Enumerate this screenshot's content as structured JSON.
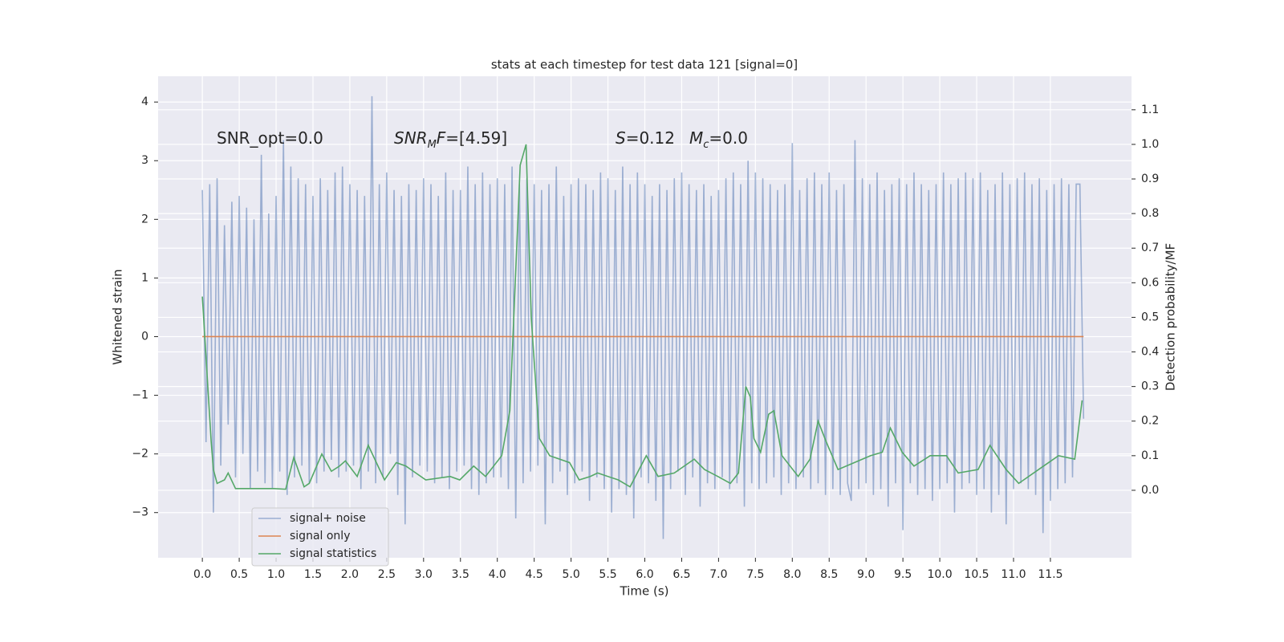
{
  "chart_data": {
    "type": "line",
    "title": "stats at each timestep for test data 121 [signal=0]",
    "xlabel": "Time (s)",
    "ylabel": "Whitened strain",
    "y2label": "Detection probability/MF",
    "annotations": [
      [
        {
          "text": "SNR_opt=0.0"
        }
      ],
      [
        {
          "text": "SNR",
          "italic": true
        },
        {
          "text": "M",
          "italic": true,
          "sub": true
        },
        {
          "text": "F",
          "italic": true
        },
        {
          "text": "=[4.59]"
        }
      ],
      [
        {
          "text": "S",
          "italic": true
        },
        {
          "text": "=0.12"
        }
      ],
      [
        {
          "text": "M",
          "italic": true
        },
        {
          "text": "c",
          "italic": true,
          "sub": true
        },
        {
          "text": "=0.0"
        }
      ]
    ],
    "xlim": [
      -0.6,
      12.6
    ],
    "ylim": [
      -3.77,
      4.44
    ],
    "y2lim": [
      -0.195,
      1.197
    ],
    "xticks": [
      {
        "value": 0,
        "label": "0.0"
      },
      0.5,
      {
        "value": 1,
        "label": "1.0"
      },
      1.5,
      {
        "value": 2,
        "label": "2.0"
      },
      2.5,
      {
        "value": 3,
        "label": "3.0"
      },
      3.5,
      {
        "value": 4,
        "label": "4.0"
      },
      4.5,
      {
        "value": 5,
        "label": "5.0"
      },
      5.5,
      {
        "value": 6,
        "label": "6.0"
      },
      6.5,
      {
        "value": 7,
        "label": "7.0"
      },
      7.5,
      {
        "value": 8,
        "label": "8.0"
      },
      8.5,
      {
        "value": 9,
        "label": "9.0"
      },
      9.5,
      {
        "value": 10,
        "label": "10.0"
      },
      10.5,
      {
        "value": 11,
        "label": "11.0"
      },
      11.5
    ],
    "yticks": [
      {
        "value": -3,
        "label": "−3"
      },
      {
        "value": -2,
        "label": "−2"
      },
      {
        "value": -1,
        "label": "−1"
      },
      0,
      1,
      2,
      3,
      4
    ],
    "y2ticks": [
      {
        "value": 0,
        "label": "0.0"
      },
      0.1,
      0.2,
      0.3,
      0.4,
      0.5,
      0.6,
      0.7,
      0.8,
      0.9,
      {
        "value": 1,
        "label": "1.0"
      },
      1.1
    ],
    "grid": true,
    "legend": "lower left",
    "series": [
      {
        "name": "signal+ noise",
        "color": "#4c72b0",
        "opacity": 0.5,
        "x": [
          0,
          0.05,
          0.1,
          0.15,
          0.2,
          0.25,
          0.3,
          0.35,
          0.4,
          0.45,
          0.5,
          0.55,
          0.6,
          0.65,
          0.7,
          0.75,
          0.8,
          0.85,
          0.9,
          0.95,
          1,
          1.05,
          1.1,
          1.15,
          1.2,
          1.25,
          1.3,
          1.35,
          1.4,
          1.45,
          1.5,
          1.55,
          1.6,
          1.65,
          1.7,
          1.75,
          1.8,
          1.85,
          1.9,
          1.95,
          2,
          2.05,
          2.1,
          2.15,
          2.2,
          2.25,
          2.3,
          2.35,
          2.4,
          2.45,
          2.5,
          2.55,
          2.6,
          2.65,
          2.7,
          2.75,
          2.8,
          2.85,
          2.9,
          2.95,
          3,
          3.05,
          3.1,
          3.15,
          3.2,
          3.25,
          3.3,
          3.35,
          3.4,
          3.45,
          3.5,
          3.55,
          3.6,
          3.65,
          3.7,
          3.75,
          3.8,
          3.85,
          3.9,
          3.95,
          4,
          4.05,
          4.1,
          4.15,
          4.2,
          4.25,
          4.3,
          4.35,
          4.4,
          4.45,
          4.5,
          4.55,
          4.6,
          4.65,
          4.7,
          4.75,
          4.8,
          4.85,
          4.9,
          4.95,
          5,
          5.05,
          5.1,
          5.15,
          5.2,
          5.25,
          5.3,
          5.35,
          5.4,
          5.45,
          5.5,
          5.55,
          5.6,
          5.65,
          5.7,
          5.75,
          5.8,
          5.85,
          5.9,
          5.95,
          6,
          6.05,
          6.1,
          6.15,
          6.2,
          6.25,
          6.3,
          6.35,
          6.4,
          6.45,
          6.5,
          6.55,
          6.6,
          6.65,
          6.7,
          6.75,
          6.8,
          6.85,
          6.9,
          6.95,
          7,
          7.05,
          7.1,
          7.15,
          7.2,
          7.25,
          7.3,
          7.35,
          7.4,
          7.45,
          7.5,
          7.55,
          7.6,
          7.65,
          7.7,
          7.75,
          7.8,
          7.85,
          7.9,
          7.95,
          8,
          8.05,
          8.1,
          8.15,
          8.2,
          8.25,
          8.3,
          8.35,
          8.4,
          8.45,
          8.5,
          8.55,
          8.6,
          8.65,
          8.7,
          8.75,
          8.8,
          8.85,
          8.9,
          8.95,
          9,
          9.05,
          9.1,
          9.15,
          9.2,
          9.25,
          9.3,
          9.35,
          9.4,
          9.45,
          9.5,
          9.55,
          9.6,
          9.65,
          9.7,
          9.75,
          9.8,
          9.85,
          9.9,
          9.95,
          10,
          10.05,
          10.1,
          10.15,
          10.2,
          10.25,
          10.3,
          10.35,
          10.4,
          10.45,
          10.5,
          10.55,
          10.6,
          10.65,
          10.7,
          10.75,
          10.8,
          10.85,
          10.9,
          10.95,
          11,
          11.05,
          11.1,
          11.15,
          11.2,
          11.25,
          11.3,
          11.35,
          11.4,
          11.45,
          11.5,
          11.55,
          11.6,
          11.65,
          11.7,
          11.75,
          11.8,
          11.85,
          11.9,
          11.95
        ],
        "values": [
          2.5,
          -1.8,
          2.6,
          -3.0,
          2.7,
          -2.2,
          1.9,
          -1.5,
          2.3,
          -2.4,
          2.4,
          -2.0,
          2.2,
          -2.6,
          2.0,
          -2.3,
          3.1,
          -2.5,
          2.1,
          -2.6,
          2.4,
          -2.3,
          3.35,
          -2.7,
          2.9,
          -2.4,
          2.7,
          -2.2,
          2.6,
          -2.5,
          2.4,
          -2.5,
          2.7,
          -2.3,
          2.5,
          -2.1,
          2.8,
          -2.4,
          2.9,
          -2.3,
          2.6,
          -2.2,
          2.5,
          -2.6,
          2.4,
          -2.3,
          4.1,
          -2.5,
          2.6,
          -2.4,
          2.8,
          -2.0,
          2.5,
          -2.7,
          2.4,
          -3.2,
          2.6,
          -2.4,
          2.5,
          -2.2,
          2.7,
          -2.3,
          2.6,
          -2.5,
          2.4,
          -2.4,
          2.8,
          -2.6,
          2.5,
          -2.3,
          2.5,
          -2.2,
          2.9,
          -2.6,
          2.6,
          -2.7,
          2.8,
          -2.5,
          2.6,
          -2.4,
          2.7,
          -2.4,
          2.6,
          -2.6,
          2.9,
          -3.1,
          2.6,
          -2.5,
          2.7,
          -2.3,
          2.6,
          -2.2,
          2.5,
          -3.2,
          2.6,
          -2.5,
          2.9,
          -2.3,
          2.4,
          -2.7,
          2.6,
          -2.5,
          2.7,
          -2.3,
          2.6,
          -2.8,
          2.5,
          -2.4,
          2.8,
          -2.6,
          2.7,
          -3.0,
          2.5,
          -2.6,
          2.9,
          -2.7,
          2.6,
          -3.1,
          2.8,
          -2.4,
          2.6,
          -2.5,
          2.4,
          -2.8,
          2.6,
          -3.45,
          2.5,
          -2.6,
          2.7,
          -2.3,
          2.8,
          -2.7,
          2.6,
          -2.4,
          2.5,
          -2.9,
          2.6,
          -2.5,
          2.4,
          -2.6,
          2.5,
          -2.4,
          2.7,
          -2.6,
          2.8,
          -2.5,
          2.6,
          -2.9,
          3.0,
          -2.5,
          2.8,
          -2.6,
          2.7,
          -2.5,
          2.6,
          -2.4,
          2.5,
          -2.7,
          2.6,
          -2.5,
          3.3,
          -2.6,
          2.5,
          -2.4,
          2.7,
          -2.6,
          2.8,
          -2.5,
          2.6,
          -2.7,
          2.8,
          -2.6,
          2.5,
          -2.7,
          2.6,
          -2.5,
          -2.8,
          3.35,
          -2.6,
          2.7,
          -2.5,
          2.6,
          -2.7,
          2.8,
          -2.6,
          2.5,
          -2.9,
          2.6,
          -2.5,
          2.7,
          -3.3,
          2.6,
          -2.5,
          2.8,
          -2.7,
          2.6,
          -2.6,
          2.5,
          -2.8,
          2.6,
          -2.6,
          2.8,
          -2.5,
          2.6,
          -3.0,
          2.7,
          -2.6,
          2.8,
          -2.5,
          2.7,
          -2.7,
          2.8,
          -2.6,
          2.5,
          -3.0,
          2.6,
          -2.7,
          2.8,
          -3.2,
          2.6,
          -2.6,
          2.7,
          -2.5,
          2.8,
          -2.6,
          2.6,
          -2.7,
          2.7,
          -3.35,
          2.5,
          -2.8,
          2.6,
          -2.6,
          2.7,
          -2.5,
          2.6,
          -2.4,
          2.6,
          2.6,
          -1.4
        ]
      },
      {
        "name": "signal only",
        "color": "#dd8452",
        "x": [
          0,
          11.95
        ],
        "values": [
          0,
          0
        ]
      },
      {
        "name": "signal statistics",
        "color": "#55a868",
        "axis": "y2",
        "x": [
          0,
          0.12,
          0.15,
          0.2,
          0.3,
          0.35,
          0.45,
          0.97,
          1.13,
          1.24,
          1.38,
          1.45,
          1.62,
          1.75,
          1.86,
          1.94,
          2.1,
          2.25,
          2.47,
          2.63,
          2.76,
          3.03,
          3.36,
          3.49,
          3.68,
          3.84,
          4.06,
          4.17,
          4.31,
          4.39,
          4.46,
          4.57,
          4.71,
          4.98,
          5.11,
          5.26,
          5.36,
          5.64,
          5.8,
          6.02,
          6.18,
          6.4,
          6.67,
          6.81,
          6.99,
          7.16,
          7.27,
          7.37,
          7.43,
          7.48,
          7.57,
          7.68,
          7.75,
          7.86,
          8.08,
          8.24,
          8.35,
          8.46,
          8.62,
          8.84,
          9.06,
          9.22,
          9.33,
          9.49,
          9.65,
          9.87,
          10.09,
          10.25,
          10.52,
          10.68,
          10.9,
          11.07,
          11.34,
          11.61,
          11.83,
          11.93
        ],
        "values": [
          0.56,
          0.14,
          0.06,
          0.02,
          0.03,
          0.05,
          0.005,
          0.005,
          0.003,
          0.095,
          0.01,
          0.02,
          0.105,
          0.055,
          0.07,
          0.085,
          0.04,
          0.13,
          0.03,
          0.08,
          0.07,
          0.03,
          0.04,
          0.03,
          0.07,
          0.04,
          0.1,
          0.23,
          0.94,
          1.0,
          0.5,
          0.15,
          0.1,
          0.08,
          0.03,
          0.04,
          0.05,
          0.03,
          0.01,
          0.1,
          0.04,
          0.05,
          0.09,
          0.06,
          0.04,
          0.02,
          0.05,
          0.3,
          0.27,
          0.15,
          0.11,
          0.22,
          0.23,
          0.1,
          0.04,
          0.09,
          0.2,
          0.14,
          0.06,
          0.08,
          0.1,
          0.11,
          0.18,
          0.11,
          0.07,
          0.1,
          0.1,
          0.05,
          0.06,
          0.13,
          0.06,
          0.02,
          0.06,
          0.1,
          0.09,
          0.26
        ]
      }
    ]
  }
}
